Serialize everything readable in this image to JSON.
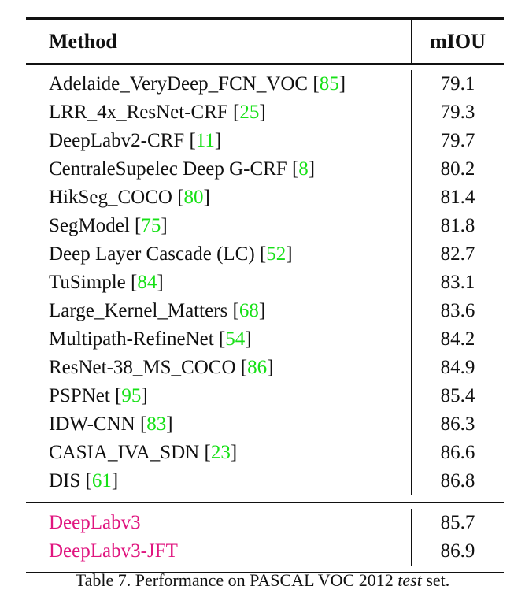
{
  "table": {
    "header": {
      "method": "Method",
      "miou": "mIOU"
    },
    "rows": [
      {
        "method": "Adelaide_VeryDeep_FCN_VOC",
        "cite": "85",
        "miou": "79.1"
      },
      {
        "method": "LRR_4x_ResNet-CRF",
        "cite": "25",
        "miou": "79.3"
      },
      {
        "method": "DeepLabv2-CRF",
        "cite": "11",
        "miou": "79.7"
      },
      {
        "method": "CentraleSupelec Deep G-CRF",
        "cite": "8",
        "miou": "80.2"
      },
      {
        "method": "HikSeg_COCO",
        "cite": "80",
        "miou": "81.4"
      },
      {
        "method": "SegModel",
        "cite": "75",
        "miou": "81.8"
      },
      {
        "method": "Deep Layer Cascade (LC)",
        "cite": "52",
        "miou": "82.7"
      },
      {
        "method": "TuSimple",
        "cite": "84",
        "miou": "83.1"
      },
      {
        "method": "Large_Kernel_Matters",
        "cite": "68",
        "miou": "83.6"
      },
      {
        "method": "Multipath-RefineNet",
        "cite": "54",
        "miou": "84.2"
      },
      {
        "method": "ResNet-38_MS_COCO",
        "cite": "86",
        "miou": "84.9"
      },
      {
        "method": "PSPNet",
        "cite": "95",
        "miou": "85.4"
      },
      {
        "method": "IDW-CNN",
        "cite": "83",
        "miou": "86.3"
      },
      {
        "method": "CASIA_IVA_SDN",
        "cite": "23",
        "miou": "86.6"
      },
      {
        "method": "DIS",
        "cite": "61",
        "miou": "86.8"
      }
    ],
    "ours": [
      {
        "method": "DeepLabv3",
        "miou": "85.7"
      },
      {
        "method": "DeepLabv3-JFT",
        "miou": "86.9"
      }
    ]
  },
  "caption": {
    "prefix": "Table 7. Performance on PASCAL VOC 2012 ",
    "italic": "test",
    "suffix": " set."
  },
  "colors": {
    "citation": "#16e016",
    "ours": "#e0157f",
    "text": "#111111"
  }
}
